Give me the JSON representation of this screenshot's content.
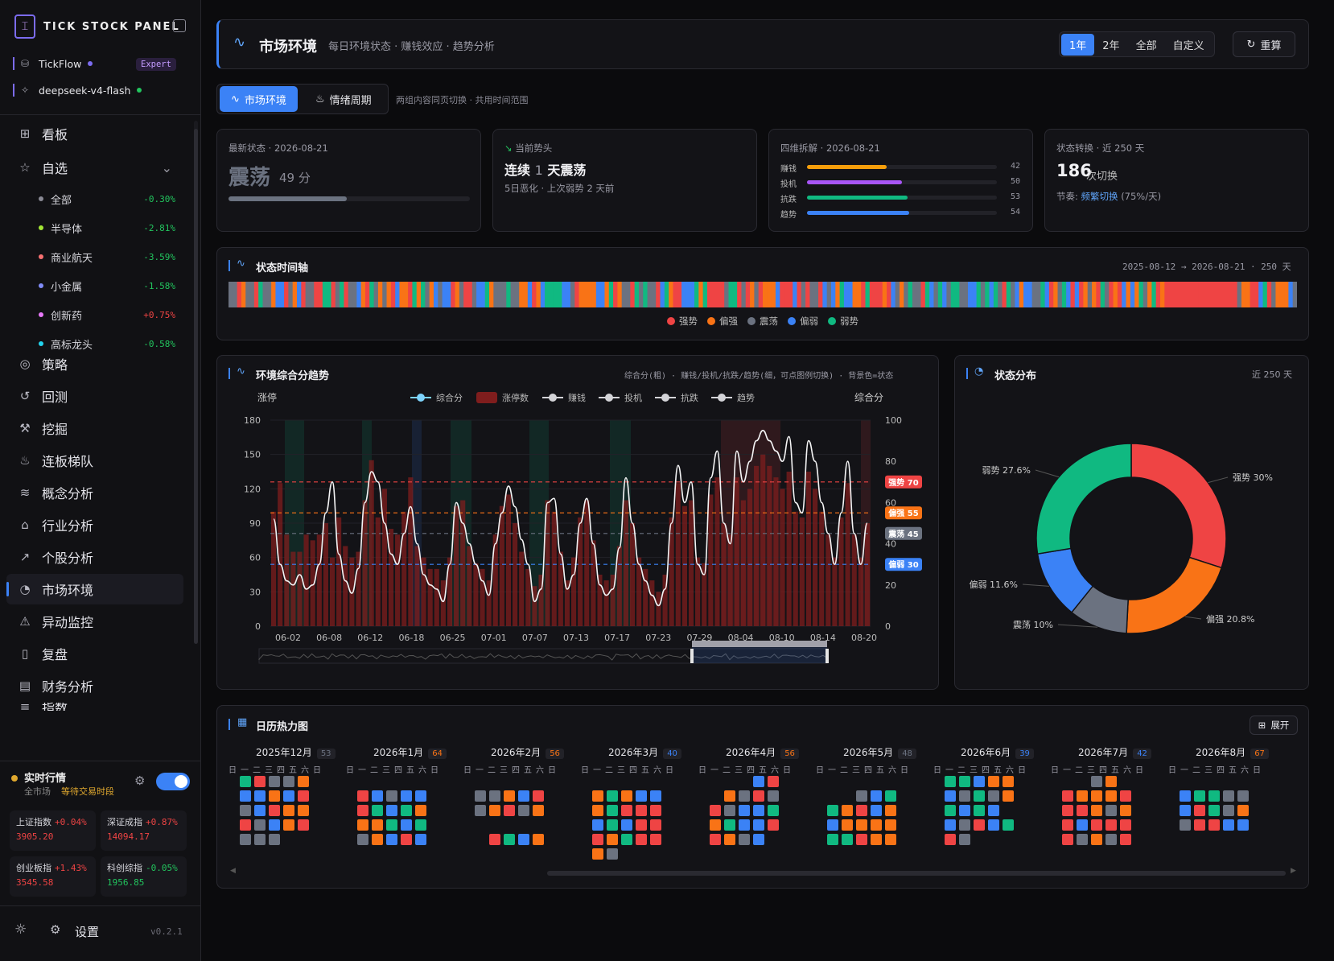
{
  "brand": {
    "name": "TICK STOCK PANEL",
    "logo_icon": "candlestick-icon"
  },
  "env": {
    "source": "TickFlow",
    "tier": "Expert",
    "model": "deepseek-v4-flash"
  },
  "nav": [
    {
      "label": "看板",
      "icon": "grid-icon"
    },
    {
      "label": "自选",
      "icon": "star-icon"
    },
    {
      "label": "策略",
      "icon": "strategy-icon"
    },
    {
      "label": "回测",
      "icon": "history-icon"
    },
    {
      "label": "挖掘",
      "icon": "pickaxe-icon"
    },
    {
      "label": "连板梯队",
      "icon": "flame-icon"
    },
    {
      "label": "概念分析",
      "icon": "layers-icon"
    },
    {
      "label": "行业分析",
      "icon": "bank-icon"
    },
    {
      "label": "个股分析",
      "icon": "trend-icon"
    },
    {
      "label": "市场环境",
      "icon": "gauge-icon"
    },
    {
      "label": "异动监控",
      "icon": "alarm-icon"
    },
    {
      "label": "复盘",
      "icon": "book-icon"
    },
    {
      "label": "财务分析",
      "icon": "doc-icon"
    },
    {
      "label": "指数",
      "icon": "index-icon"
    }
  ],
  "watch": [
    {
      "label": "全部",
      "value": "-0.30%",
      "dot": "#8a8a95",
      "color": "#22c55e"
    },
    {
      "label": "半导体",
      "value": "-2.81%",
      "dot": "#a3e635",
      "color": "#22c55e"
    },
    {
      "label": "商业航天",
      "value": "-3.59%",
      "dot": "#f87171",
      "color": "#22c55e"
    },
    {
      "label": "小金属",
      "value": "-1.58%",
      "dot": "#818cf8",
      "color": "#22c55e"
    },
    {
      "label": "创新药",
      "value": "+0.75%",
      "dot": "#e879f9",
      "color": "#ef4444"
    },
    {
      "label": "高标龙头",
      "value": "-0.58%",
      "dot": "#22d3ee",
      "color": "#22c55e"
    }
  ],
  "realtime": {
    "title": "实时行情",
    "scope": "全市场",
    "status": "等待交易时段",
    "indices": [
      {
        "name": "上证指数",
        "pct": "+0.04%",
        "val": "3905.20",
        "color": "#ef4444"
      },
      {
        "name": "深证成指",
        "pct": "+0.87%",
        "val": "14094.17",
        "color": "#ef4444"
      },
      {
        "name": "创业板指",
        "pct": "+1.43%",
        "val": "3545.58",
        "color": "#ef4444"
      },
      {
        "name": "科创综指",
        "pct": "-0.05%",
        "val": "1956.85",
        "color": "#22c55e"
      }
    ]
  },
  "footer": {
    "settings": "设置",
    "version": "v0.2.1"
  },
  "header": {
    "title": "市场环境",
    "subtitle": "每日环境状态 · 赚钱效应 · 趋势分析",
    "ranges": [
      "1年",
      "2年",
      "全部",
      "自定义"
    ],
    "recalc": "重算"
  },
  "tabs": {
    "env": "市场环境",
    "emotion": "情绪周期",
    "hint": "两组内容同页切换 · 共用时间范围"
  },
  "stats": {
    "latest": {
      "label": "最新状态 · 2026-08-21",
      "state": "震荡",
      "score": "49 分",
      "progress": 0.49
    },
    "trend": {
      "label": "当前势头",
      "title_a": "连续",
      "title_n": "1",
      "title_b": "天震荡",
      "sub": "5日恶化 · 上次弱势 2 天前"
    },
    "dims": {
      "label": "四维拆解 · 2026-08-21",
      "items": [
        {
          "name": "赚钱",
          "value": 42,
          "color": "#f59e0b"
        },
        {
          "name": "投机",
          "value": 50,
          "color": "#a855f7"
        },
        {
          "name": "抗跌",
          "value": 53,
          "color": "#10b981"
        },
        {
          "name": "趋势",
          "value": 54,
          "color": "#3b82f6"
        }
      ]
    },
    "switch": {
      "label": "状态转换 · 近 250 天",
      "count": "186",
      "unit": "次切换",
      "rhythm_label": "节奏:",
      "rhythm_value": "频繁切换",
      "rhythm_rate": "(75%/天)"
    }
  },
  "timeline": {
    "title": "状态时间轴",
    "range": "2025-08-12 → 2026-08-21 · 250 天",
    "legend": [
      {
        "name": "强势",
        "color": "#ef4444"
      },
      {
        "name": "偏强",
        "color": "#f97316"
      },
      {
        "name": "震荡",
        "color": "#6b7280"
      },
      {
        "name": "偏弱",
        "color": "#3b82f6"
      },
      {
        "name": "弱势",
        "color": "#10b981"
      }
    ]
  },
  "trend_chart": {
    "title": "环境综合分趋势",
    "note": "综合分(粗) · 赚钱/投机/抗跌/趋势(细，可点图例切换) · 背景色=状态"
  },
  "donut": {
    "title": "状态分布",
    "range": "近 250 天"
  },
  "heatmap": {
    "title": "日历热力图",
    "expand": "展开",
    "weekdays": "日一二三四五六日",
    "months": [
      {
        "label": "2025年12月",
        "count": "53",
        "cc": "#6b7280"
      },
      {
        "label": "2026年1月",
        "count": "64",
        "cc": "#f97316"
      },
      {
        "label": "2026年2月",
        "count": "56",
        "cc": "#f97316"
      },
      {
        "label": "2026年3月",
        "count": "40",
        "cc": "#3b82f6"
      },
      {
        "label": "2026年4月",
        "count": "56",
        "cc": "#f97316"
      },
      {
        "label": "2026年5月",
        "count": "48",
        "cc": "#6b7280"
      },
      {
        "label": "2026年6月",
        "count": "39",
        "cc": "#3b82f6"
      },
      {
        "label": "2026年7月",
        "count": "42",
        "cc": "#3b82f6"
      },
      {
        "label": "2026年8月",
        "count": "67",
        "cc": "#f97316"
      }
    ]
  },
  "chart_data": [
    {
      "type": "line",
      "title": "环境综合分趋势",
      "ylabel_left": "涨停",
      "ylabel_right": "综合分",
      "y_left_ticks": [
        0,
        30,
        60,
        90,
        120,
        150,
        180
      ],
      "y_right_ticks": [
        0,
        20,
        40,
        60,
        80,
        100
      ],
      "x_ticks": [
        "06-02",
        "06-08",
        "06-12",
        "06-18",
        "06-25",
        "07-01",
        "07-07",
        "07-13",
        "07-17",
        "07-23",
        "07-29",
        "08-04",
        "08-10",
        "08-14",
        "08-20"
      ],
      "legend": [
        {
          "name": "综合分",
          "color": "#7dd3fc"
        },
        {
          "name": "涨停数",
          "color": "#7f1d1d"
        },
        {
          "name": "赚钱",
          "color": "#d4d4d8"
        },
        {
          "name": "投机",
          "color": "#d4d4d8"
        },
        {
          "name": "抗跌",
          "color": "#d4d4d8"
        },
        {
          "name": "趋势",
          "color": "#d4d4d8"
        }
      ],
      "thresholds": [
        {
          "name": "强势 70",
          "value": 70,
          "color": "#ef4444"
        },
        {
          "name": "偏强 55",
          "value": 55,
          "color": "#f97316"
        },
        {
          "name": "震荡 45",
          "value": 45,
          "color": "#6b7280"
        },
        {
          "name": "偏弱 30",
          "value": 30,
          "color": "#3b82f6"
        }
      ],
      "score": [
        52,
        30,
        22,
        20,
        25,
        18,
        20,
        30,
        55,
        70,
        35,
        22,
        16,
        28,
        60,
        75,
        70,
        50,
        35,
        30,
        45,
        58,
        40,
        25,
        20,
        18,
        12,
        30,
        60,
        50,
        40,
        30,
        22,
        15,
        40,
        55,
        68,
        58,
        42,
        30,
        12,
        18,
        60,
        62,
        35,
        18,
        25,
        50,
        62,
        40,
        20,
        15,
        18,
        38,
        72,
        50,
        30,
        22,
        15,
        10,
        18,
        50,
        78,
        60,
        70,
        30,
        25,
        72,
        85,
        50,
        40,
        85,
        70,
        80,
        90,
        95,
        90,
        85,
        80,
        92,
        60,
        55,
        90,
        80,
        60,
        45,
        30,
        55,
        80,
        45,
        30,
        50
      ],
      "limit_up": [
        100,
        125,
        80,
        65,
        65,
        80,
        75,
        80,
        90,
        60,
        95,
        70,
        60,
        65,
        110,
        145,
        95,
        120,
        85,
        80,
        100,
        130,
        70,
        60,
        50,
        50,
        40,
        60,
        105,
        110,
        70,
        55,
        50,
        40,
        80,
        105,
        115,
        90,
        65,
        50,
        35,
        45,
        110,
        100,
        65,
        40,
        60,
        95,
        110,
        75,
        45,
        40,
        45,
        70,
        110,
        90,
        60,
        50,
        40,
        30,
        45,
        95,
        125,
        105,
        110,
        60,
        55,
        115,
        130,
        90,
        80,
        130,
        110,
        120,
        140,
        150,
        140,
        130,
        120,
        135,
        100,
        95,
        135,
        120,
        100,
        80,
        60,
        95,
        125,
        80,
        60,
        90
      ]
    },
    {
      "type": "pie",
      "title": "状态分布",
      "categories": [
        "强势",
        "偏强",
        "震荡",
        "偏弱",
        "弱势"
      ],
      "values": [
        30,
        20.8,
        10,
        11.6,
        27.6
      ],
      "labels": [
        "强势 30%",
        "偏强 20.8%",
        "震荡 10%",
        "偏弱 11.6%",
        "弱势 27.6%"
      ],
      "colors": [
        "#ef4444",
        "#f97316",
        "#6b7280",
        "#3b82f6",
        "#10b981"
      ]
    }
  ]
}
